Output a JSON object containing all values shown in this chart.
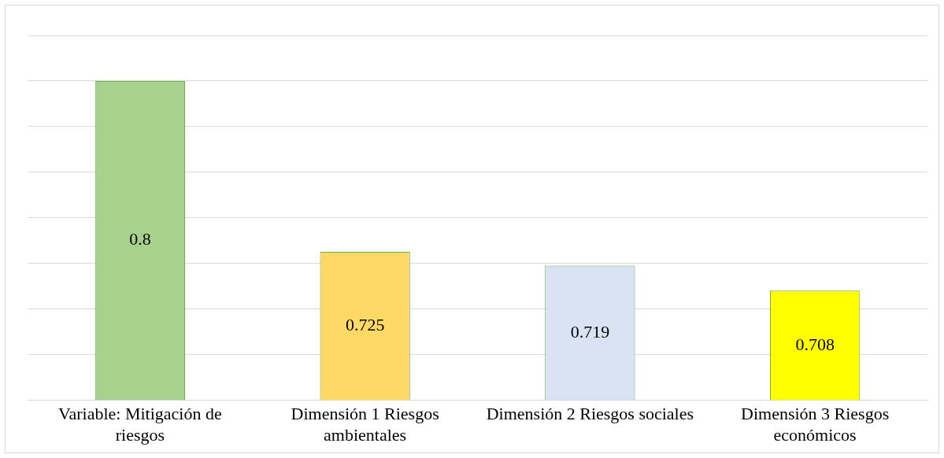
{
  "chart_data": {
    "type": "bar",
    "categories": [
      "Variable: Mitigación de riesgos",
      "Dimensión 1 Riesgos ambientales",
      "Dimensión 2 Riesgos sociales",
      "Dimensión 3 Riesgos económicos"
    ],
    "values": [
      0.8,
      0.725,
      0.719,
      0.708
    ],
    "colors": [
      "#a9d18e",
      "#ffd966",
      "#dae3f3",
      "#ffff00"
    ],
    "ylim": [
      0.66,
      0.82
    ],
    "yticks": [
      {
        "value": 0.66,
        "label": null
      },
      {
        "value": 0.68,
        "label": null
      },
      {
        "value": 0.7,
        "label": null
      },
      {
        "value": 0.72,
        "label": null
      },
      {
        "value": 0.74,
        "label": null
      },
      {
        "value": 0.76,
        "label": null
      },
      {
        "value": 0.78,
        "label": null
      },
      {
        "value": 0.8,
        "label": null
      },
      {
        "value": 0.82,
        "label": null
      }
    ],
    "grid": "y",
    "tick_labels": "x",
    "data_labels": true,
    "legend": false
  }
}
